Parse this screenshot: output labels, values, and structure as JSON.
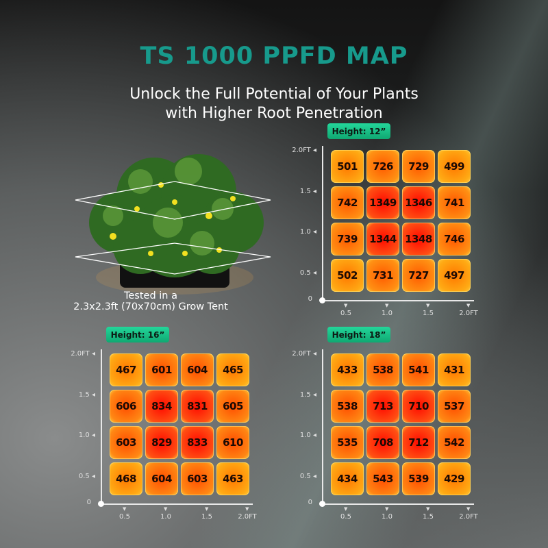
{
  "title": "TS 1000 PPFD MAP",
  "subtitle_line1": "Unlock the Full Potential of Your Plants",
  "subtitle_line2": "with Higher Root Penetration",
  "caption_line1": "Tested in a",
  "caption_line2": "2.3x2.3ft (70x70cm) Grow Tent",
  "colors": {
    "title": "#179a8c",
    "badge": "#1bc48a",
    "cell_low": "#ff9a10",
    "cell_high": "#ff1a00"
  },
  "chart_data": [
    {
      "type": "heatmap",
      "title": "Height: 12”",
      "x_ticks": [
        "0.5",
        "1.0",
        "1.5",
        "2.0FT"
      ],
      "y_ticks": [
        "2.0FT",
        "1.5",
        "1.0",
        "0.5",
        "0"
      ],
      "values": [
        [
          501,
          726,
          729,
          499
        ],
        [
          742,
          1349,
          1346,
          741
        ],
        [
          739,
          1344,
          1348,
          746
        ],
        [
          502,
          731,
          727,
          497
        ]
      ]
    },
    {
      "type": "heatmap",
      "title": "Height: 16”",
      "x_ticks": [
        "0.5",
        "1.0",
        "1.5",
        "2.0FT"
      ],
      "y_ticks": [
        "2.0FT",
        "1.5",
        "1.0",
        "0.5",
        "0"
      ],
      "values": [
        [
          467,
          601,
          604,
          465
        ],
        [
          606,
          834,
          831,
          605
        ],
        [
          603,
          829,
          833,
          610
        ],
        [
          468,
          604,
          603,
          463
        ]
      ]
    },
    {
      "type": "heatmap",
      "title": "Height: 18”",
      "x_ticks": [
        "0.5",
        "1.0",
        "1.5",
        "2.0FT"
      ],
      "y_ticks": [
        "2.0FT",
        "1.5",
        "1.0",
        "0.5",
        "0"
      ],
      "values": [
        [
          433,
          538,
          541,
          431
        ],
        [
          538,
          713,
          710,
          537
        ],
        [
          535,
          708,
          712,
          542
        ],
        [
          434,
          543,
          539,
          429
        ]
      ]
    }
  ]
}
